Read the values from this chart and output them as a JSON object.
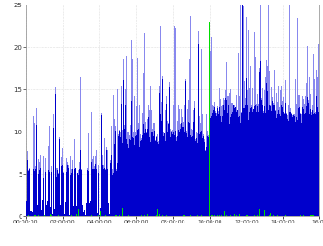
{
  "xlim": [
    0,
    960
  ],
  "ylim": [
    0,
    25
  ],
  "yticks": [
    0,
    5,
    10,
    15,
    20,
    25
  ],
  "xtick_positions": [
    0,
    120,
    240,
    360,
    480,
    600,
    720,
    840,
    960
  ],
  "xtick_labels": [
    "00:00:00",
    "02:00:00",
    "04:00:00",
    "06:00:00",
    "08:00:00",
    "10:00:00",
    "12:00:00",
    "14:00:00",
    "16:00"
  ],
  "n_bars": 960,
  "dark_blue": "#0000cc",
  "light_blue": "#8888ee",
  "green_color": "#00dd00",
  "bg_color": "#ffffff",
  "grid_color": "#bbbbbb",
  "seed": 42,
  "ylabel_fontsize": 5,
  "xlabel_fontsize": 4.5
}
